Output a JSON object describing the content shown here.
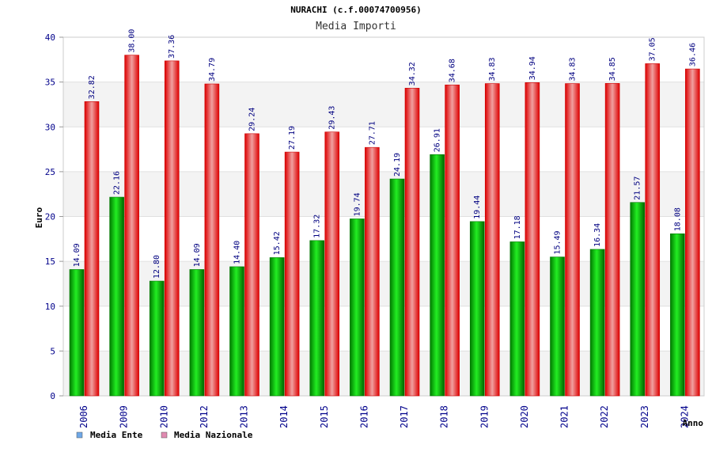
{
  "chart_data": {
    "type": "bar",
    "title": "NURACHI (c.f.00074700956)",
    "subtitle": "Media Importi",
    "ylabel": "Euro",
    "xlabel": "Anno",
    "ylim": [
      0,
      40
    ],
    "yticks": [
      0,
      5,
      10,
      15,
      20,
      25,
      30,
      35,
      40
    ],
    "grid": true,
    "legend_position": "bottom-left",
    "categories": [
      "2006",
      "2009",
      "2010",
      "2012",
      "2013",
      "2014",
      "2015",
      "2016",
      "2017",
      "2018",
      "2019",
      "2020",
      "2021",
      "2022",
      "2023",
      "2024"
    ],
    "series": [
      {
        "name": "Media Ente",
        "color": "#00cc00",
        "legend_color": "#6fa8e8",
        "values": [
          14.09,
          22.16,
          12.8,
          14.09,
          14.4,
          15.42,
          17.32,
          19.74,
          24.19,
          26.91,
          19.44,
          17.18,
          15.49,
          16.34,
          21.57,
          18.08
        ],
        "labels": [
          "14.09",
          "22.16",
          "12.80",
          "14.09",
          "14.40",
          "15.42",
          "17.32",
          "19.74",
          "24.19",
          "26.91",
          "19.44",
          "17.18",
          "15.49",
          "16.34",
          "21.57",
          "18.08"
        ]
      },
      {
        "name": "Media Nazionale",
        "color": "#ee1111",
        "legend_color": "#e08ab0",
        "values": [
          32.82,
          38.0,
          37.36,
          34.79,
          29.24,
          27.19,
          29.43,
          27.71,
          34.32,
          34.68,
          34.83,
          34.94,
          34.83,
          34.85,
          37.05,
          36.46
        ],
        "labels": [
          "32.82",
          "38.00",
          "37.36",
          "34.79",
          "29.24",
          "27.19",
          "29.43",
          "27.71",
          "34.32",
          "34.68",
          "34.83",
          "34.94",
          "34.83",
          "34.85",
          "37.05",
          "36.46"
        ]
      }
    ]
  }
}
